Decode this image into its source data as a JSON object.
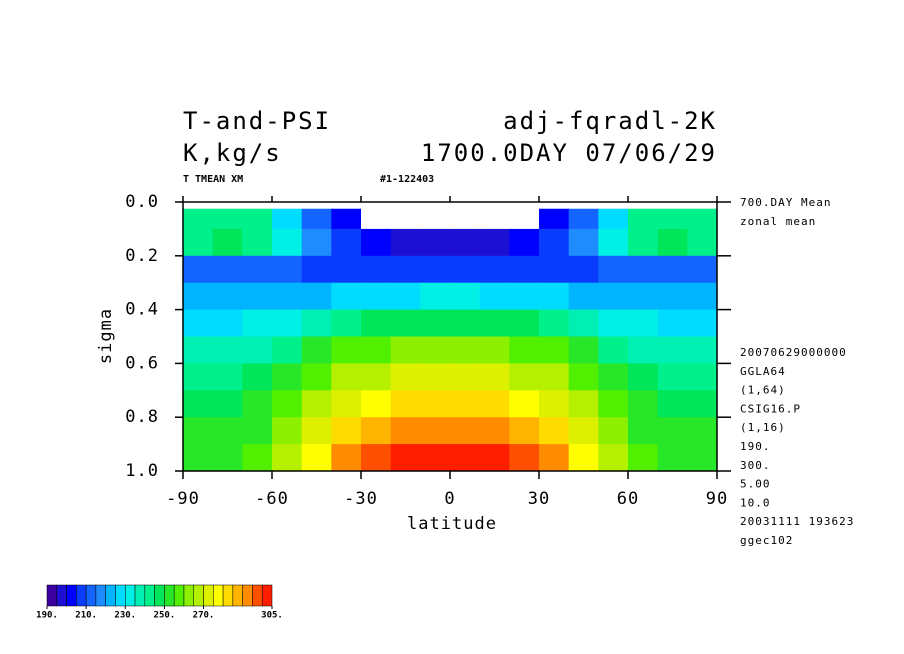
{
  "chart_data": {
    "type": "contour",
    "title_left": [
      "T-and-PSI",
      "K,kg/s"
    ],
    "title_right": [
      "adj-fqradl-2K",
      "1700.0DAY 07/06/29"
    ],
    "subtitle_left": "T TMEAN XM",
    "subtitle_right": "#1-122403",
    "xlabel": "latitude",
    "ylabel": "sigma",
    "xlim": [
      -90,
      90
    ],
    "xticks": [
      -90,
      -60,
      -30,
      0,
      30,
      60,
      90
    ],
    "ylim": [
      0,
      1
    ],
    "yticks": [
      {
        "value": 0,
        "label": "0.0"
      },
      {
        "value": 0.2,
        "label": "0.2"
      },
      {
        "value": 0.4,
        "label": "0.4"
      },
      {
        "value": 0.6,
        "label": "0.6"
      },
      {
        "value": 0.8,
        "label": "0.8"
      },
      {
        "value": 1,
        "label": "1.0"
      }
    ],
    "y_reversed": true,
    "x_edges": [
      -90,
      -80,
      -70,
      -60,
      -50,
      -40,
      -30,
      -20,
      -10,
      0,
      10,
      20,
      30,
      40,
      50,
      60,
      70,
      80,
      90
    ],
    "y_edges": [
      0.025,
      0.1,
      0.2,
      0.3,
      0.4,
      0.5,
      0.6,
      0.7,
      0.8,
      0.9,
      1.0
    ],
    "z": [
      [
        240,
        242,
        240,
        228,
        212,
        200,
        185,
        185,
        185,
        185,
        185,
        185,
        200,
        212,
        228,
        240,
        242,
        240
      ],
      [
        242,
        245,
        242,
        232,
        215,
        205,
        200,
        198,
        197,
        197,
        198,
        200,
        205,
        215,
        232,
        242,
        245,
        242
      ],
      [
        210,
        210,
        210,
        210,
        208,
        207,
        206,
        205,
        205,
        205,
        205,
        206,
        207,
        208,
        210,
        210,
        210,
        210
      ],
      [
        220,
        220,
        220,
        222,
        224,
        226,
        228,
        229,
        230,
        230,
        229,
        228,
        226,
        224,
        222,
        220,
        220,
        220
      ],
      [
        228,
        229,
        230,
        234,
        238,
        242,
        245,
        247,
        248,
        248,
        247,
        245,
        242,
        238,
        234,
        230,
        229,
        228
      ],
      [
        236,
        237,
        238,
        244,
        250,
        255,
        258,
        260,
        261,
        261,
        260,
        258,
        255,
        250,
        244,
        238,
        237,
        236
      ],
      [
        242,
        243,
        245,
        252,
        258,
        265,
        268,
        270,
        271,
        271,
        270,
        268,
        265,
        258,
        252,
        245,
        243,
        242
      ],
      [
        247,
        248,
        250,
        258,
        266,
        274,
        279,
        281,
        282,
        282,
        281,
        279,
        274,
        266,
        258,
        250,
        248,
        247
      ],
      [
        250,
        251,
        254,
        262,
        272,
        283,
        289,
        291,
        292,
        292,
        291,
        289,
        283,
        272,
        262,
        254,
        251,
        250
      ],
      [
        253,
        254,
        257,
        266,
        277,
        290,
        296,
        300,
        302,
        302,
        300,
        296,
        290,
        277,
        266,
        257,
        254,
        253
      ]
    ],
    "colorbar": {
      "levels": [
        190,
        195,
        200,
        205,
        210,
        215,
        220,
        225,
        230,
        235,
        240,
        245,
        250,
        255,
        260,
        265,
        270,
        275,
        280,
        285,
        290,
        295,
        300,
        305
      ],
      "colors": [
        "#3c00a0",
        "#1e10d2",
        "#0000ff",
        "#0a3cff",
        "#1464ff",
        "#1e8cff",
        "#00b4ff",
        "#00dcff",
        "#00f0e6",
        "#00f0b4",
        "#00f08c",
        "#00e65a",
        "#28e628",
        "#50f000",
        "#8cf000",
        "#b4f000",
        "#dcf000",
        "#ffff00",
        "#ffdc00",
        "#ffb400",
        "#ff8c00",
        "#ff5000",
        "#ff1e00"
      ],
      "ticks": [
        {
          "value": 190,
          "label": "190."
        },
        {
          "value": 210,
          "label": "210."
        },
        {
          "value": 230,
          "label": "230."
        },
        {
          "value": 250,
          "label": "250."
        },
        {
          "value": 270,
          "label": "270."
        },
        {
          "value": 305,
          "label": "305."
        }
      ]
    },
    "side_notes_top": [
      "700.DAY Mean",
      "zonal mean"
    ],
    "side_notes_bottom": [
      "20070629000000",
      "GGLA64",
      "(1,64)",
      "CSIG16.P",
      "(1,16)",
      "190.",
      "300.",
      "5.00",
      "10.0",
      "20031111 193623",
      "ggec102"
    ]
  }
}
